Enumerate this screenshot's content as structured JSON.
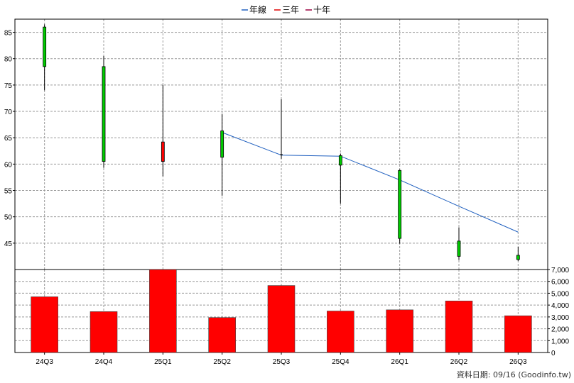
{
  "chart_data": {
    "type": "candlestick",
    "categories": [
      "24Q3",
      "24Q4",
      "25Q1",
      "25Q2",
      "25Q3",
      "25Q4",
      "26Q1",
      "26Q2",
      "26Q3"
    ],
    "legend": [
      {
        "name": "年線",
        "color": "#1f5fbf"
      },
      {
        "name": "三年",
        "color": "#e00000"
      },
      {
        "name": "十年",
        "color": "#9b0040"
      }
    ],
    "price": {
      "ylim": [
        40,
        87.5
      ],
      "ticks": [
        45,
        50,
        55,
        60,
        65,
        70,
        75,
        80,
        85
      ],
      "candles": [
        {
          "open": 78.5,
          "high": 86.5,
          "low": 74,
          "close": 86,
          "direction": "up"
        },
        {
          "open": 60.5,
          "high": 80.5,
          "low": 59.3,
          "close": 78.5,
          "direction": "up"
        },
        {
          "open": 64.2,
          "high": 75,
          "low": 57.7,
          "close": 60.5,
          "direction": "down"
        },
        {
          "open": 61.3,
          "high": 69.5,
          "low": 54,
          "close": 66.3,
          "direction": "up"
        },
        {
          "open": 61.6,
          "high": 72.3,
          "low": 61,
          "close": 61.8,
          "direction": "flat"
        },
        {
          "open": 59.8,
          "high": 62,
          "low": 52.5,
          "close": 61.6,
          "direction": "up"
        },
        {
          "open": 45.9,
          "high": 59,
          "low": 44.9,
          "close": 58.8,
          "direction": "up"
        },
        {
          "open": 42.5,
          "high": 48,
          "low": 41.8,
          "close": 45.4,
          "direction": "up"
        },
        {
          "open": 41.9,
          "high": 44.3,
          "low": 41.6,
          "close": 42.7,
          "direction": "up"
        }
      ],
      "year_line": [
        null,
        null,
        null,
        66,
        61.7,
        61.5,
        57,
        52,
        47.1
      ]
    },
    "volume": {
      "ylim": [
        0,
        7000
      ],
      "ticks": [
        0,
        1000,
        2000,
        3000,
        4000,
        5000,
        6000,
        7000
      ],
      "tick_labels": [
        "0",
        "1,000",
        "2,000",
        "3,000",
        "4,000",
        "5,000",
        "6,000",
        "7,000"
      ],
      "values": [
        4700,
        3450,
        7000,
        2950,
        5650,
        3500,
        3600,
        4350,
        3100
      ],
      "color": "#ff0000"
    },
    "colors": {
      "up": "#00cc00",
      "down": "#ff0000",
      "wick": "#000000",
      "grid": "#999999"
    }
  },
  "footer": {
    "text": "資料日期: 09/16  (Goodinfo.tw)"
  }
}
